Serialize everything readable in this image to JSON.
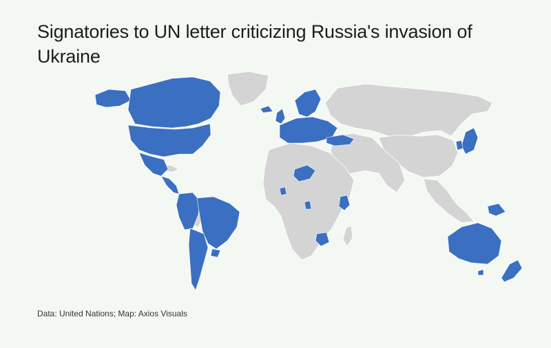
{
  "title": "Signatories to UN letter criticizing Russia's invasion of Ukraine",
  "credit": "Data: United Nations; Map: Axios Visuals",
  "colors": {
    "background": "#f4f8f3",
    "signatory": "#3a6fc1",
    "non_signatory": "#d4d4d4",
    "border": "#ffffff"
  },
  "map": {
    "projection": "world",
    "regions_highlighted": [
      "United States",
      "Canada",
      "Mexico",
      "Guatemala",
      "Belize",
      "Costa Rica",
      "Panama",
      "Colombia",
      "Ecuador",
      "Peru",
      "Brazil",
      "Chile",
      "Uruguay",
      "Paraguay",
      "Argentina",
      "European Union member states",
      "United Kingdom",
      "Ireland",
      "Norway",
      "Iceland",
      "Turkey",
      "Georgia",
      "Moldova",
      "Ukraine",
      "Japan",
      "South Korea",
      "Australia",
      "New Zealand",
      "Papua New Guinea",
      "Niger",
      "Liberia",
      "Ghana",
      "Kenya",
      "Botswana"
    ]
  }
}
